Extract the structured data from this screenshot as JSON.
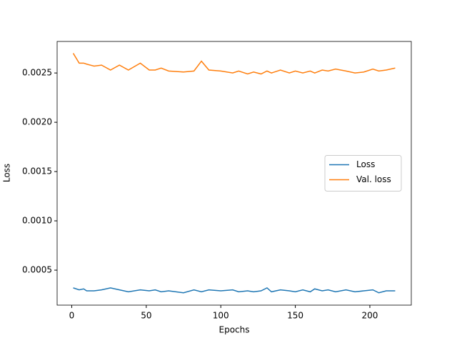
{
  "chart_data": {
    "type": "line",
    "xlabel": "Epochs",
    "ylabel": "Loss",
    "x": [
      1,
      5,
      8,
      10,
      15,
      20,
      26,
      32,
      38,
      46,
      52,
      56,
      60,
      65,
      75,
      82,
      87,
      92,
      100,
      108,
      112,
      118,
      122,
      127,
      131,
      134,
      140,
      146,
      150,
      155,
      160,
      163,
      168,
      172,
      177,
      184,
      190,
      196,
      202,
      206,
      211,
      217
    ],
    "series": [
      {
        "name": "Loss",
        "color": "#1f77b4",
        "values": [
          0.00032,
          0.0003,
          0.00031,
          0.00029,
          0.00029,
          0.0003,
          0.00032,
          0.0003,
          0.00028,
          0.0003,
          0.00029,
          0.0003,
          0.00028,
          0.00029,
          0.00027,
          0.0003,
          0.00028,
          0.0003,
          0.00029,
          0.0003,
          0.00028,
          0.00029,
          0.00028,
          0.00029,
          0.00032,
          0.00028,
          0.0003,
          0.00029,
          0.00028,
          0.0003,
          0.00028,
          0.00031,
          0.00029,
          0.0003,
          0.00028,
          0.0003,
          0.00028,
          0.00029,
          0.0003,
          0.00027,
          0.00029,
          0.00029
        ]
      },
      {
        "name": "Val. loss",
        "color": "#ff7f0e",
        "values": [
          0.0027,
          0.0026,
          0.0026,
          0.00259,
          0.00257,
          0.00258,
          0.00253,
          0.00258,
          0.00253,
          0.0026,
          0.00253,
          0.00253,
          0.00255,
          0.00252,
          0.00251,
          0.00252,
          0.00262,
          0.00253,
          0.00252,
          0.0025,
          0.00252,
          0.00249,
          0.00251,
          0.00249,
          0.00252,
          0.0025,
          0.00253,
          0.0025,
          0.00252,
          0.0025,
          0.00252,
          0.0025,
          0.00253,
          0.00252,
          0.00254,
          0.00252,
          0.0025,
          0.00251,
          0.00254,
          0.00252,
          0.00253,
          0.00255
        ]
      }
    ],
    "xlim": [
      -9.8,
      227.8
    ],
    "xticks": [
      0,
      50,
      100,
      150,
      200
    ],
    "ylim": [
      0.000145,
      0.00282
    ],
    "yticks": [
      {
        "value": 0.0005,
        "label": "0.0005"
      },
      {
        "value": 0.001,
        "label": "0.0010"
      },
      {
        "value": 0.0015,
        "label": "0.0015"
      },
      {
        "value": 0.002,
        "label": "0.0020"
      },
      {
        "value": 0.0025,
        "label": "0.0025"
      }
    ],
    "legend": "center right",
    "grid": false
  }
}
